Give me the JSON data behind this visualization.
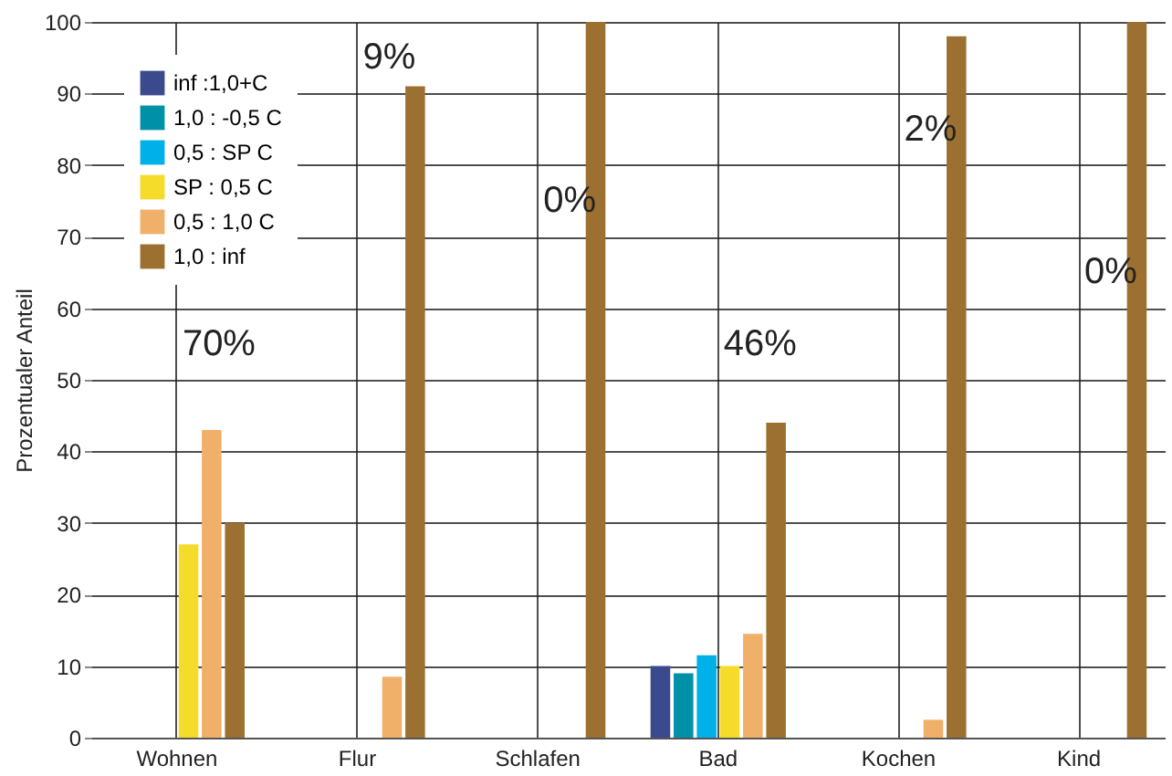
{
  "chart_data": {
    "type": "bar",
    "ylabel": "Prozentualer Anteil",
    "categories": [
      "Wohnen",
      "Flur",
      "Schlafen",
      "Bad",
      "Kochen",
      "Kind"
    ],
    "series": [
      {
        "name": "inf :1,0+C",
        "color": "#3b4a8c",
        "values": [
          null,
          null,
          null,
          10,
          null,
          null
        ]
      },
      {
        "name": "1,0 : -0,5 C",
        "color": "#0090a8",
        "values": [
          null,
          null,
          null,
          9,
          null,
          null
        ]
      },
      {
        "name": "0,5 : SP C",
        "color": "#00b0e8",
        "values": [
          null,
          null,
          null,
          11.5,
          null,
          null
        ]
      },
      {
        "name": "SP : 0,5 C",
        "color": "#f5dc2a",
        "values": [
          27,
          null,
          null,
          10,
          null,
          null
        ]
      },
      {
        "name": "0,5 : 1,0 C",
        "color": "#f0b06a",
        "values": [
          43,
          8.5,
          null,
          14.5,
          2.5,
          null
        ]
      },
      {
        "name": "1,0 : inf",
        "color": "#9c7030",
        "values": [
          30,
          91,
          100,
          44,
          98,
          100
        ]
      }
    ],
    "ylim": [
      0,
      100
    ],
    "yticks": [
      0,
      10,
      20,
      30,
      40,
      50,
      60,
      70,
      80,
      90,
      100
    ],
    "grid": true,
    "legend": "top left",
    "annotations": [
      "70%",
      "9%",
      "0%",
      "46%",
      "2%",
      "0%"
    ]
  }
}
